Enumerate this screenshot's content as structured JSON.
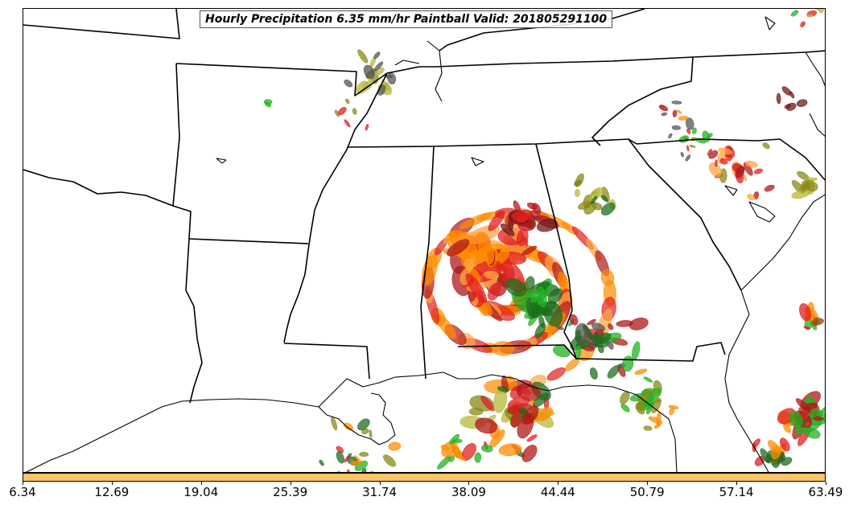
{
  "title": "Hourly Precipitation 6.35 mm/hr Paintball Valid: 201805291100",
  "colorbar": {
    "color": "#ffc266",
    "ticks": [
      "6.34",
      "12.69",
      "19.04",
      "25.39",
      "31.74",
      "38.09",
      "44.44",
      "50.79",
      "57.14",
      "63.49"
    ]
  },
  "member_colors": [
    "#ff8c00",
    "#e02020",
    "#b01818",
    "#22b022",
    "#1f6e1f",
    "#8a8a1a",
    "#555555",
    "#ffa640",
    "#b8b83a",
    "#6e1a1a"
  ]
}
